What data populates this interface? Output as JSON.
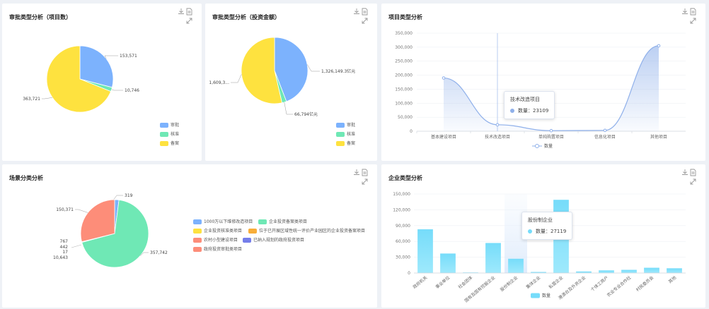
{
  "colors": {
    "blue": "#7cb2fd",
    "green": "#6fe8b5",
    "yellow": "#fee23f",
    "orange": "#f8ad39",
    "salmon": "#fd8d79",
    "purple": "#757eea",
    "cyan": "#76dcfa",
    "line": "#8fb0ea"
  },
  "panels": {
    "p1": {
      "title": "审批类型分析（项目数）"
    },
    "p2": {
      "title": "审批类型分析（投资金额）"
    },
    "p3": {
      "title": "项目类型分析"
    },
    "p4": {
      "title": "场景分类分析"
    },
    "p5": {
      "title": "企业类型分析"
    }
  },
  "icons": [
    "download-icon",
    "document-icon",
    "expand-icon"
  ],
  "chart_data": [
    {
      "type": "pie",
      "title": "审批类型分析（项目数）",
      "slices": [
        {
          "name": "审批",
          "value": 153571,
          "label": "153,571",
          "color": "#7cb2fd"
        },
        {
          "name": "核准",
          "value": 10746,
          "label": "10,746",
          "color": "#6fe8b5"
        },
        {
          "name": "备案",
          "value": 363721,
          "label": "363,721",
          "color": "#fee23f"
        }
      ],
      "legend": "bottom-right"
    },
    {
      "type": "pie",
      "title": "审批类型分析（投资金额）",
      "slices": [
        {
          "name": "审批",
          "value": 1326149.3,
          "label": "1,326,149.3亿元",
          "color": "#7cb2fd"
        },
        {
          "name": "核准",
          "value": 66794,
          "label": "66,794亿元",
          "color": "#6fe8b5"
        },
        {
          "name": "备案",
          "value": 1609300,
          "label": "1,609,3...",
          "color": "#fee23f"
        }
      ],
      "legend": "bottom-right"
    },
    {
      "type": "area",
      "title": "项目类型分析",
      "categories": [
        "基本建设项目",
        "技术改造项目",
        "单纯购置项目",
        "信息化项目",
        "其他项目"
      ],
      "series": [
        {
          "name": "数量",
          "values": [
            190000,
            23109,
            2000,
            3000,
            305000
          ]
        }
      ],
      "ylim": [
        0,
        350000
      ],
      "yticks": [
        "0",
        "50,000",
        "100,000",
        "150,000",
        "200,000",
        "250,000",
        "300,000",
        "350,000"
      ],
      "legend": "bottom",
      "tooltip": {
        "title": "技术改造项目",
        "label": "数量：",
        "value": "23109"
      }
    },
    {
      "type": "pie",
      "title": "场景分类分析",
      "slices": [
        {
          "name": "1000万以下维修改造项目",
          "value": 10643,
          "label": "10,643",
          "color": "#7cb2fd"
        },
        {
          "name": "企业投资备案类项目",
          "value": 357742,
          "label": "357,742",
          "color": "#6fe8b5"
        },
        {
          "name": "企业投资核准类项目",
          "value": 767,
          "label": "767",
          "color": "#fee23f"
        },
        {
          "name": "位于已开展区域性统一评价产业园区的企业投资备案项目",
          "value": 442,
          "label": "442",
          "color": "#f8ad39"
        },
        {
          "name": "农村小型建设项目",
          "value": 17,
          "label": "17",
          "color": "#fd8d79"
        },
        {
          "name": "已纳入规划的政府投资项目",
          "value": 319,
          "label": "319",
          "color": "#757eea"
        },
        {
          "name": "政府投资审批类项目",
          "value": 150371,
          "label": "150,371",
          "color": "#fd8d79"
        }
      ],
      "legend": "right"
    },
    {
      "type": "bar",
      "title": "企业类型分析",
      "categories": [
        "政府机关",
        "事业单位",
        "社会团体",
        "国有及国有控股企业",
        "股份制企业",
        "集体企业",
        "私营企业",
        "港澳台及外资企业",
        "个体工商户",
        "农业专业合作社",
        "村民委员会",
        "其他"
      ],
      "series": [
        {
          "name": "数量",
          "values": [
            83000,
            37000,
            1000,
            57000,
            27119,
            2000,
            139000,
            3000,
            5000,
            6000,
            10000,
            9000
          ]
        }
      ],
      "ylim": [
        0,
        150000
      ],
      "yticks": [
        "0",
        "30,000",
        "60,000",
        "90,000",
        "120,000",
        "150,000"
      ],
      "legend": "bottom",
      "tooltip": {
        "title": "股份制企业",
        "label": "数量：",
        "value": "27119"
      }
    }
  ]
}
